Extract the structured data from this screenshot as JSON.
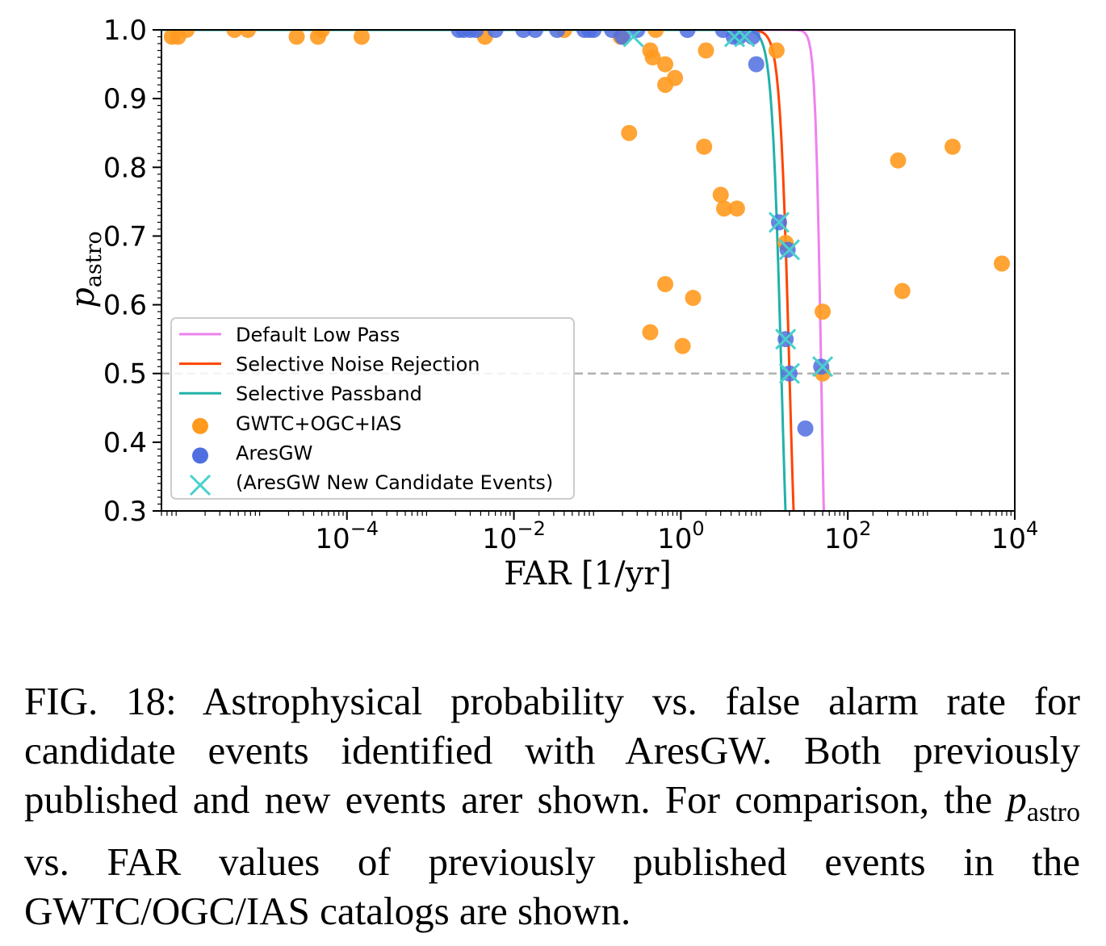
{
  "chart_data": {
    "type": "scatter",
    "xlabel": "FAR [1/yr]",
    "ylabel_main": "p",
    "ylabel_sub": "astro",
    "xscale": "log",
    "xlim": [
      6e-07,
      10000
    ],
    "ylim": [
      0.3,
      1.0
    ],
    "x_ticks": [
      {
        "value": 0.0001,
        "base": "10",
        "exp": "−4"
      },
      {
        "value": 0.01,
        "base": "10",
        "exp": "−2"
      },
      {
        "value": 1,
        "base": "10",
        "exp": "0"
      },
      {
        "value": 100,
        "base": "10",
        "exp": "2"
      },
      {
        "value": 10000,
        "base": "10",
        "exp": "4"
      }
    ],
    "y_ticks": [
      "0.3",
      "0.4",
      "0.5",
      "0.6",
      "0.7",
      "0.8",
      "0.9",
      "1.0"
    ],
    "threshold_line": 0.5,
    "colors": {
      "default_low_pass": "#ee82ee",
      "selective_noise_rejection": "#ff4500",
      "selective_passband": "#20b2aa",
      "gwtc": "#ff9a1f",
      "aresgw": "#4f6fe0",
      "new_candidates": "#48d1cc",
      "threshold": "#b0b0b0"
    },
    "curves": [
      {
        "name": "Default Low Pass",
        "key": "default_low_pass",
        "x_half": 48,
        "steep": 12
      },
      {
        "name": "Selective Noise Rejection",
        "key": "selective_noise_rejection",
        "x_half": 20,
        "steep": 7.5
      },
      {
        "name": "Selective Passband",
        "key": "selective_passband",
        "x_half": 16,
        "steep": 7.5
      }
    ],
    "legend": {
      "position": "lower-left",
      "entries": [
        {
          "label": "Default Low Pass",
          "kind": "line",
          "key": "default_low_pass"
        },
        {
          "label": "Selective Noise Rejection",
          "kind": "line",
          "key": "selective_noise_rejection"
        },
        {
          "label": "Selective Passband",
          "kind": "line",
          "key": "selective_passband"
        },
        {
          "label": "GWTC+OGC+IAS",
          "kind": "dot",
          "key": "gwtc"
        },
        {
          "label": "AresGW",
          "kind": "dot",
          "key": "aresgw"
        },
        {
          "label": "(AresGW New Candidate Events)",
          "kind": "x",
          "key": "new_candidates"
        }
      ]
    },
    "series": [
      {
        "name": "GWTC+OGC+IAS",
        "key": "gwtc",
        "points": [
          [
            8e-07,
            0.99
          ],
          [
            9.5e-07,
            0.99
          ],
          [
            1.2e-06,
            1.0
          ],
          [
            4.5e-06,
            1.0
          ],
          [
            6.5e-06,
            1.0
          ],
          [
            2.5e-05,
            0.99
          ],
          [
            4.5e-05,
            0.99
          ],
          [
            5e-05,
            1.0
          ],
          [
            0.00015,
            0.99
          ],
          [
            0.0045,
            0.99
          ],
          [
            0.04,
            1.0
          ],
          [
            0.19,
            0.99
          ],
          [
            0.43,
            0.97
          ],
          [
            0.46,
            0.96
          ],
          [
            0.5,
            1.0
          ],
          [
            0.65,
            0.95
          ],
          [
            0.65,
            0.92
          ],
          [
            0.85,
            0.93
          ],
          [
            0.24,
            0.85
          ],
          [
            2.0,
            0.97
          ],
          [
            1.9,
            0.83
          ],
          [
            3.0,
            0.76
          ],
          [
            3.3,
            0.74
          ],
          [
            4.7,
            0.74
          ],
          [
            4.5,
            1.0
          ],
          [
            14,
            0.97
          ],
          [
            0.65,
            0.63
          ],
          [
            0.43,
            0.56
          ],
          [
            1.4,
            0.61
          ],
          [
            1.05,
            0.54
          ],
          [
            18,
            0.69
          ],
          [
            50,
            0.5
          ],
          [
            50,
            0.59
          ],
          [
            400,
            0.81
          ],
          [
            450,
            0.62
          ],
          [
            1800,
            0.83
          ],
          [
            7000,
            0.66
          ]
        ]
      },
      {
        "name": "AresGW",
        "key": "aresgw",
        "points": [
          [
            0.0022,
            1.0
          ],
          [
            0.0025,
            1.0
          ],
          [
            0.003,
            1.0
          ],
          [
            0.0035,
            1.0
          ],
          [
            0.006,
            1.0
          ],
          [
            0.013,
            1.0
          ],
          [
            0.018,
            1.0
          ],
          [
            0.033,
            1.0
          ],
          [
            0.07,
            1.0
          ],
          [
            0.08,
            1.0
          ],
          [
            0.09,
            1.0
          ],
          [
            0.15,
            1.0
          ],
          [
            0.2,
            0.99
          ],
          [
            0.3,
            1.0
          ],
          [
            1.2,
            1.0
          ],
          [
            3.2,
            1.0
          ],
          [
            4.3,
            0.99
          ],
          [
            5.0,
            0.99
          ],
          [
            7.2,
            0.99
          ],
          [
            8.0,
            0.95
          ],
          [
            15,
            0.72
          ],
          [
            19,
            0.68
          ],
          [
            18,
            0.55
          ],
          [
            20,
            0.5
          ],
          [
            31,
            0.42
          ],
          [
            48,
            0.51
          ]
        ]
      },
      {
        "name": "(AresGW New Candidate Events)",
        "key": "new_candidates",
        "points": [
          [
            0.27,
            0.99
          ],
          [
            4.4,
            0.99
          ],
          [
            5.8,
            0.99
          ],
          [
            15,
            0.72
          ],
          [
            20,
            0.68
          ],
          [
            18,
            0.55
          ],
          [
            20,
            0.5
          ],
          [
            50,
            0.51
          ]
        ]
      }
    ]
  },
  "caption": {
    "part1": "FIG. 18: Astrophysical probability vs. false alarm rate for candidate events identified with AresGW. Both previously published and new events arer shown. For comparison, the ",
    "math_main": "p",
    "math_sub": "astro",
    "part2": " vs. FAR values of previously published events in the GWTC/OGC/IAS catalogs are shown."
  }
}
